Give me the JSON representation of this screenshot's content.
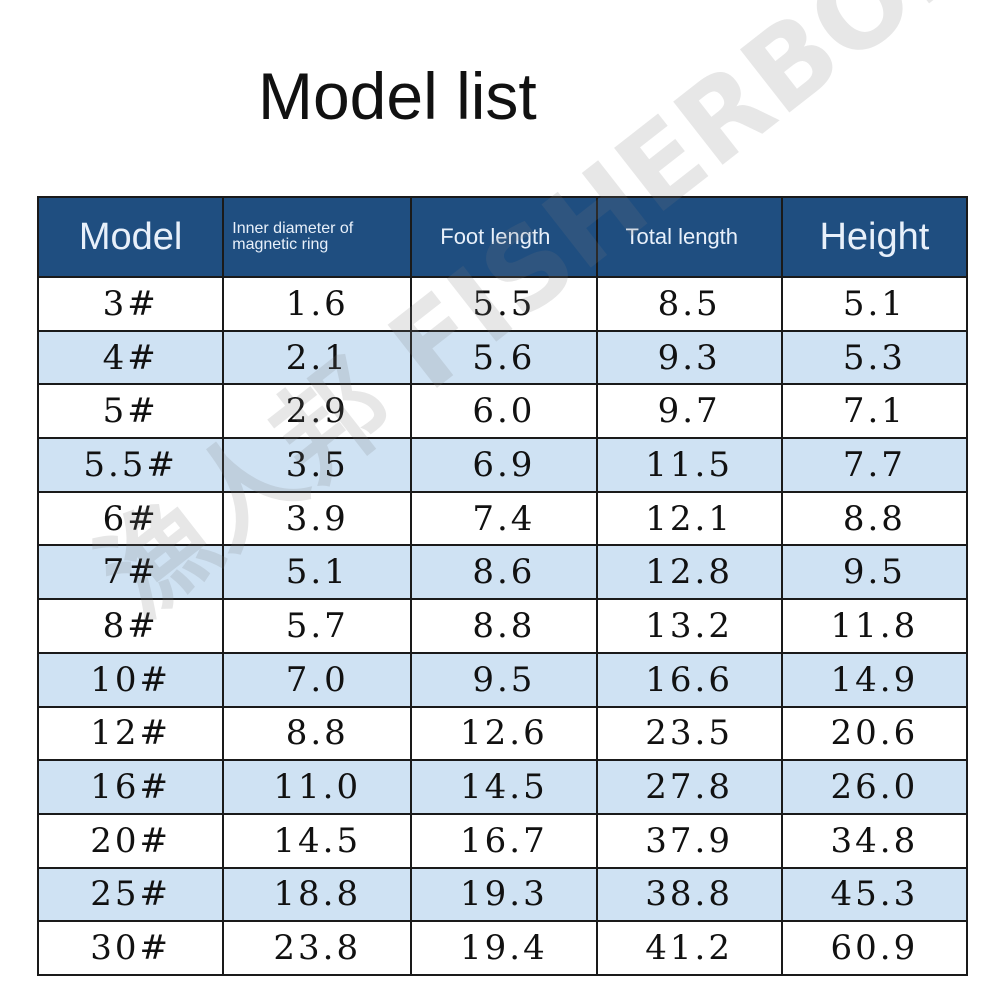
{
  "title": "Model list",
  "watermark": "漁人邦 FISHERBON",
  "colors": {
    "header_bg": "#1f4e80",
    "alt_row_bg": "#cfe2f3"
  },
  "table": {
    "headers": [
      "Model",
      "Inner diameter of magnetic ring",
      "Foot length",
      "Total length",
      "Height"
    ],
    "rows": [
      [
        "3#",
        "1.6",
        "5.5",
        "8.5",
        "5.1"
      ],
      [
        "4#",
        "2.1",
        "5.6",
        "9.3",
        "5.3"
      ],
      [
        "5#",
        "2.9",
        "6.0",
        "9.7",
        "7.1"
      ],
      [
        "5.5#",
        "3.5",
        "6.9",
        "11.5",
        "7.7"
      ],
      [
        "6#",
        "3.9",
        "7.4",
        "12.1",
        "8.8"
      ],
      [
        "7#",
        "5.1",
        "8.6",
        "12.8",
        "9.5"
      ],
      [
        "8#",
        "5.7",
        "8.8",
        "13.2",
        "11.8"
      ],
      [
        "10#",
        "7.0",
        "9.5",
        "16.6",
        "14.9"
      ],
      [
        "12#",
        "8.8",
        "12.6",
        "23.5",
        "20.6"
      ],
      [
        "16#",
        "11.0",
        "14.5",
        "27.8",
        "26.0"
      ],
      [
        "20#",
        "14.5",
        "16.7",
        "37.9",
        "34.8"
      ],
      [
        "25#",
        "18.8",
        "19.3",
        "38.8",
        "45.3"
      ],
      [
        "30#",
        "23.8",
        "19.4",
        "41.2",
        "60.9"
      ]
    ]
  }
}
